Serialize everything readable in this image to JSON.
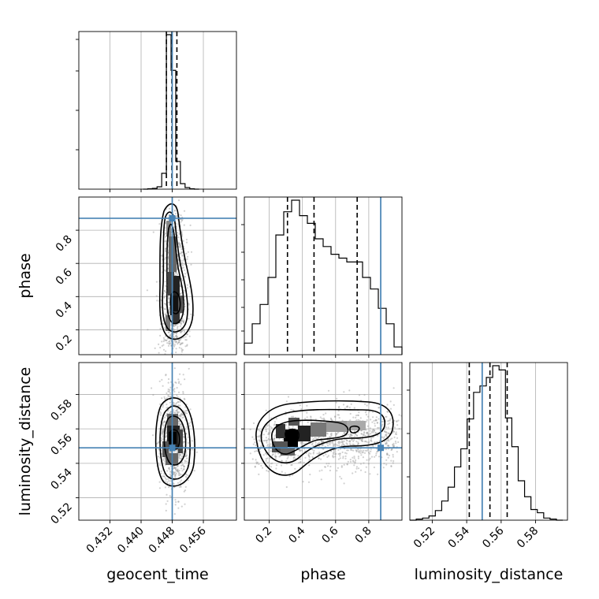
{
  "chart_data": {
    "type": "corner",
    "truth_color": "#4682b4",
    "parameters": [
      {
        "name": "geocent_time",
        "xlabel": "geocent_time",
        "range": [
          0.424,
          0.4645
        ],
        "ticks": [
          0.432,
          0.44,
          0.448,
          0.456
        ],
        "tick_labels": [
          "0.432",
          "0.440",
          "0.448",
          "0.456"
        ],
        "truth": 0.448,
        "quantiles": [
          0.4465,
          0.4479,
          0.4492
        ],
        "hist_edges": [
          0.4405,
          0.4417,
          0.4429,
          0.4441,
          0.4453,
          0.4465,
          0.4477,
          0.4489,
          0.4501,
          0.4513,
          0.4525,
          0.4537,
          0.4549
        ],
        "hist_counts": [
          0,
          1,
          2,
          6,
          40,
          390,
          300,
          70,
          14,
          4,
          1,
          0
        ]
      },
      {
        "name": "phase",
        "xlabel": "phase",
        "ylabel": "phase",
        "range": [
          0.05,
          1.0
        ],
        "ticks": [
          0.2,
          0.4,
          0.6,
          0.8
        ],
        "tick_labels": [
          "0.2",
          "0.4",
          "0.6",
          "0.8"
        ],
        "truth": 0.872,
        "quantiles": [
          0.31,
          0.47,
          0.73
        ],
        "hist_edges": [
          0.05,
          0.0975,
          0.145,
          0.1925,
          0.24,
          0.2875,
          0.335,
          0.3825,
          0.43,
          0.4775,
          0.525,
          0.5725,
          0.62,
          0.6675,
          0.715,
          0.7625,
          0.81,
          0.8575,
          0.905,
          0.9525,
          1.0
        ],
        "hist_counts": [
          3,
          8,
          13,
          20,
          31,
          37,
          40,
          36,
          34,
          30,
          28,
          26,
          25,
          24,
          24,
          20,
          17,
          12,
          8,
          2
        ]
      },
      {
        "name": "luminosity_distance",
        "xlabel": "luminosity_distance",
        "ylabel": "luminosity_distance",
        "range": [
          0.507,
          0.5985
        ],
        "ticks": [
          0.52,
          0.54,
          0.56,
          0.58
        ],
        "tick_labels": [
          "0.52",
          "0.54",
          "0.56",
          "0.58"
        ],
        "truth": 0.549,
        "quantiles": [
          0.5415,
          0.5535,
          0.5635
        ],
        "hist_edges": [
          0.507,
          0.5107,
          0.5144,
          0.5181,
          0.5218,
          0.5255,
          0.5292,
          0.5329,
          0.5366,
          0.5403,
          0.544,
          0.5477,
          0.5514,
          0.5551,
          0.5588,
          0.5625,
          0.5662,
          0.5699,
          0.5736,
          0.5773,
          0.581,
          0.5847,
          0.5884,
          0.5921,
          0.5958
        ],
        "hist_counts": [
          0,
          1,
          2,
          4,
          9,
          18,
          31,
          50,
          67,
          95,
          120,
          126,
          134,
          145,
          141,
          96,
          69,
          37,
          22,
          10,
          7,
          2,
          1,
          0
        ]
      }
    ],
    "panels_2d": [
      {
        "x": "geocent_time",
        "y": "phase",
        "mode_center": [
          0.4481,
          0.37
        ],
        "contour_levels": [
          "0.5",
          "1.0",
          "1.5",
          "2.0"
        ]
      },
      {
        "x": "geocent_time",
        "y": "luminosity_distance",
        "mode_center": [
          0.4479,
          0.552
        ],
        "contour_levels": [
          "0.5",
          "1.0",
          "1.5",
          "2.0"
        ]
      },
      {
        "x": "phase",
        "y": "luminosity_distance",
        "mode_center": [
          0.37,
          0.552
        ],
        "contour_levels": [
          "0.5",
          "1.0",
          "1.5",
          "2.0"
        ]
      }
    ],
    "grid": true
  }
}
